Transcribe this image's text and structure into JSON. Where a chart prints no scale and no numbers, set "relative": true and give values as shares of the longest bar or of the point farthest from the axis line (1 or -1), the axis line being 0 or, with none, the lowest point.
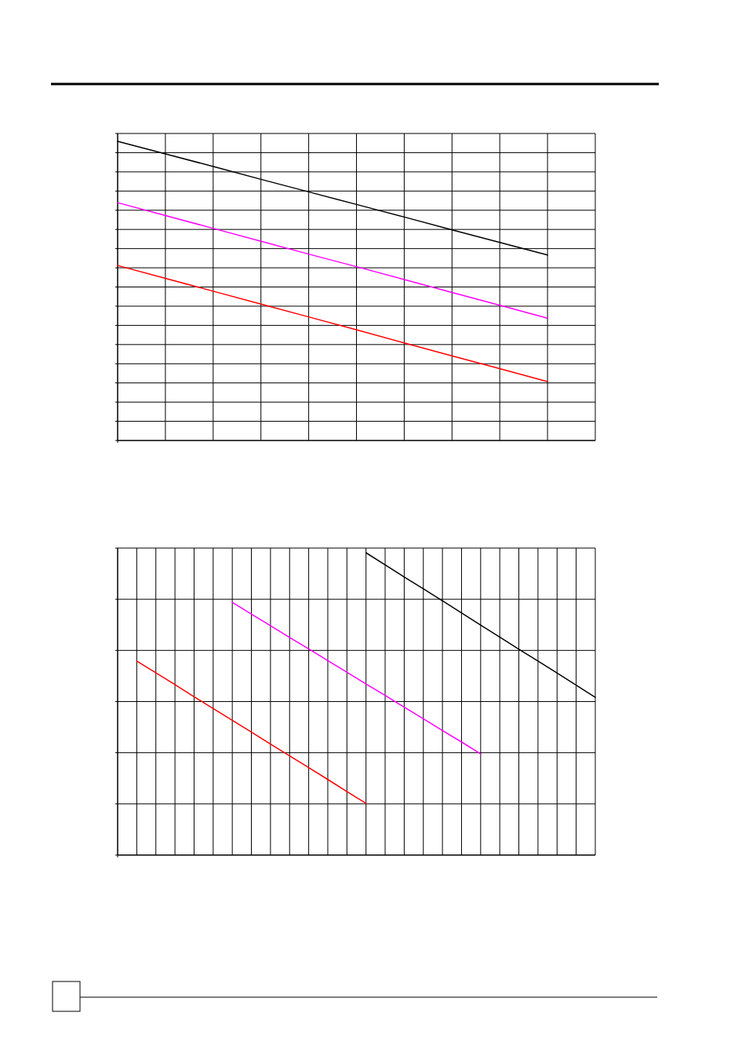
{
  "chart_data": [
    {
      "type": "line",
      "relative": true,
      "grid": true,
      "categories": [
        null,
        null,
        null,
        null,
        null,
        null,
        null,
        null,
        null,
        null,
        null
      ],
      "series": [
        {
          "color": "#000000",
          "values": [
            1,
            0.958,
            0.916,
            0.873,
            0.831,
            0.789,
            0.747,
            0.704,
            0.662,
            0.62,
            null
          ]
        },
        {
          "color": "#ff00ff",
          "values": [
            0.795,
            0.752,
            0.709,
            0.666,
            0.623,
            0.581,
            0.538,
            0.495,
            0.452,
            0.409,
            null
          ]
        },
        {
          "color": "#ff0000",
          "values": [
            0.585,
            0.542,
            0.499,
            0.456,
            0.413,
            0.37,
            0.326,
            0.283,
            0.24,
            0.197,
            null
          ]
        }
      ]
    },
    {
      "type": "line",
      "relative": true,
      "grid": true,
      "categories": [
        null,
        null,
        null,
        null,
        null,
        null,
        null,
        null,
        null,
        null,
        null,
        null,
        null,
        null,
        null,
        null,
        null,
        null,
        null,
        null,
        null,
        null,
        null,
        null,
        null,
        null
      ],
      "series": [
        {
          "color": "#000000",
          "values": [
            null,
            null,
            null,
            null,
            null,
            null,
            null,
            null,
            null,
            null,
            null,
            null,
            null,
            1,
            0.96,
            0.92,
            0.881,
            0.841,
            0.801,
            0.761,
            0.721,
            0.681,
            0.642,
            0.602,
            0.562,
            0.522
          ]
        },
        {
          "color": "#ff00ff",
          "values": [
            null,
            null,
            null,
            null,
            null,
            null,
            0.836,
            0.797,
            0.759,
            0.72,
            0.682,
            0.643,
            0.605,
            0.566,
            0.528,
            0.489,
            0.451,
            0.412,
            0.374,
            0.335,
            null,
            null,
            null,
            null,
            null,
            null
          ]
        },
        {
          "color": "#ff0000",
          "values": [
            null,
            0.642,
            0.603,
            0.564,
            0.524,
            0.485,
            0.446,
            0.407,
            0.367,
            0.328,
            0.289,
            0.25,
            0.21,
            0.171,
            null,
            null,
            null,
            null,
            null,
            null,
            null,
            null,
            null,
            null,
            null,
            null
          ]
        }
      ]
    }
  ]
}
